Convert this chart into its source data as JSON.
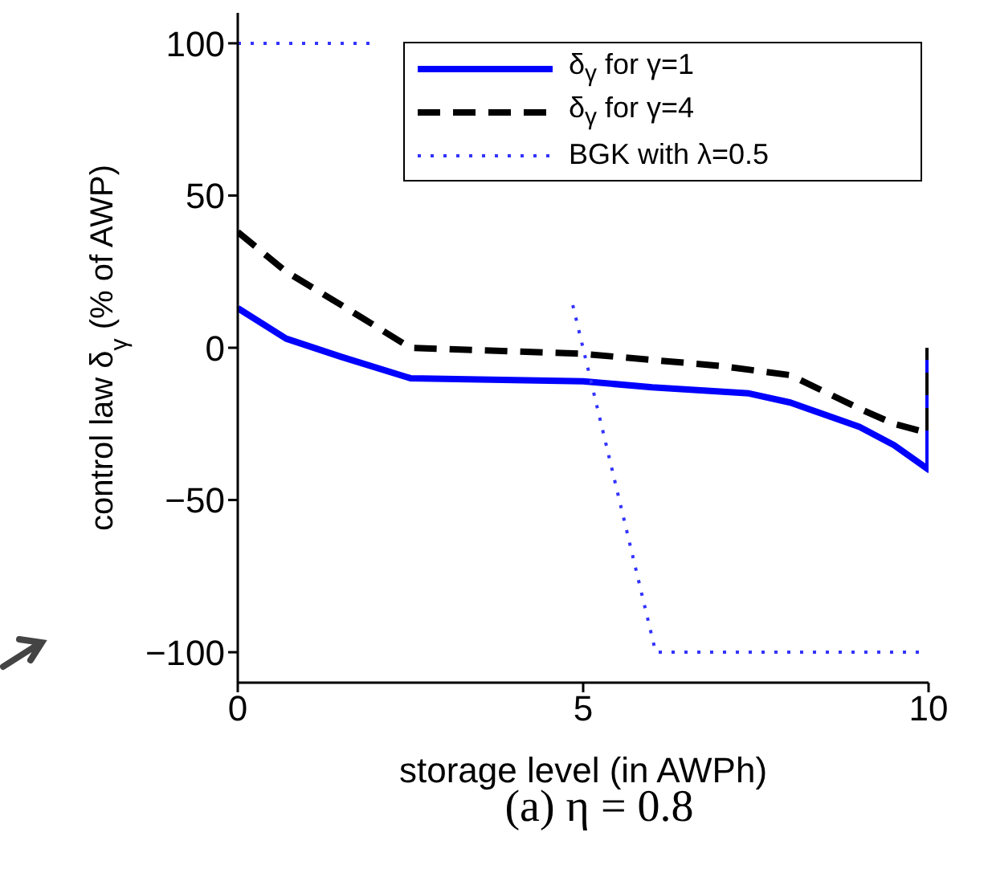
{
  "chart_data": {
    "type": "line",
    "xlabel": "storage level (in AWPh)",
    "ylabel": "control law δ$_{γ}$ (% of AWP)",
    "xlim": [
      0,
      10
    ],
    "xticks": [
      0,
      5,
      10
    ],
    "ylim": [
      -110,
      110
    ],
    "yticks": [
      -100,
      -50,
      0,
      50,
      100
    ],
    "grid": false,
    "legend": "top right",
    "annotations": [
      "(a) η = 0.8"
    ],
    "series": [
      {
        "name": "δ$_{γ}$ for γ=1",
        "color": "#0000ff",
        "line_style": "solid",
        "x": [
          0,
          0.7,
          1.5,
          2.5,
          5,
          6,
          7.4,
          8,
          9,
          9.5,
          10,
          10
        ],
        "values": [
          13,
          3,
          -3,
          -10,
          -11,
          -13,
          -15,
          -18,
          -26,
          -32,
          -40,
          0
        ]
      },
      {
        "name": "δ$_{γ}$ for γ=4",
        "color": "#000000",
        "line_style": "dashed",
        "x": [
          0,
          0.7,
          1.5,
          2.5,
          5,
          6,
          7,
          8,
          9,
          9.5,
          10,
          10
        ],
        "values": [
          38,
          25,
          14,
          0,
          -2,
          -4,
          -6,
          -9,
          -20,
          -25,
          -28,
          0
        ]
      },
      {
        "name": "BGK with λ=0.5",
        "color": "#3333ff",
        "line_style": "dotted",
        "x": [
          0,
          2,
          2.1,
          4.85,
          6.05,
          10
        ],
        "values": [
          100,
          100,
          null,
          14,
          -100,
          -100
        ]
      }
    ]
  }
}
